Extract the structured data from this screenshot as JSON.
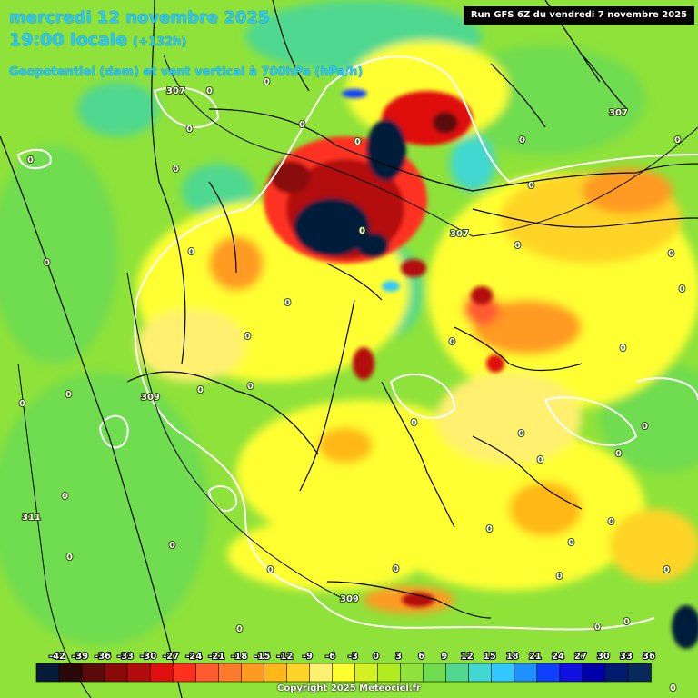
{
  "header": {
    "date_line": "mercredi 12 novembre 2025",
    "time_line": "19:00 locale",
    "offset": "(+132h)",
    "variable_line": "Geopotentiel (dam) et vent vertical à 700hPa (hPa/h)"
  },
  "run_label": "Run GFS 6Z du vendredi 7 novembre 2025",
  "copyright": "Copyright 2025 Meteociel.fr",
  "colorbar": {
    "labels": [
      "-42",
      "-39",
      "-36",
      "-33",
      "-30",
      "-27",
      "-24",
      "-21",
      "-18",
      "-15",
      "-12",
      "-9",
      "-6",
      "-3",
      "0",
      "3",
      "6",
      "9",
      "12",
      "15",
      "18",
      "21",
      "24",
      "27",
      "30",
      "33",
      "36"
    ],
    "colors": [
      "#061a3a",
      "#2a0808",
      "#5a0a0a",
      "#8a0a0a",
      "#b40c0c",
      "#e01010",
      "#ff3020",
      "#ff5a30",
      "#ff7a2a",
      "#ff9a20",
      "#ffb818",
      "#ffd428",
      "#fff070",
      "#ffff30",
      "#d4f020",
      "#b0ec20",
      "#8ee23a",
      "#70dc50",
      "#50d890",
      "#40d8d0",
      "#30c8ff",
      "#2090ff",
      "#1040ff",
      "#1010e0",
      "#0000a8",
      "#001a70",
      "#082a5a"
    ]
  },
  "contour_labels": {
    "geopotential": [
      "307",
      "307",
      "307",
      "309",
      "311",
      "309"
    ],
    "vertical_wind_zero": "0"
  }
}
